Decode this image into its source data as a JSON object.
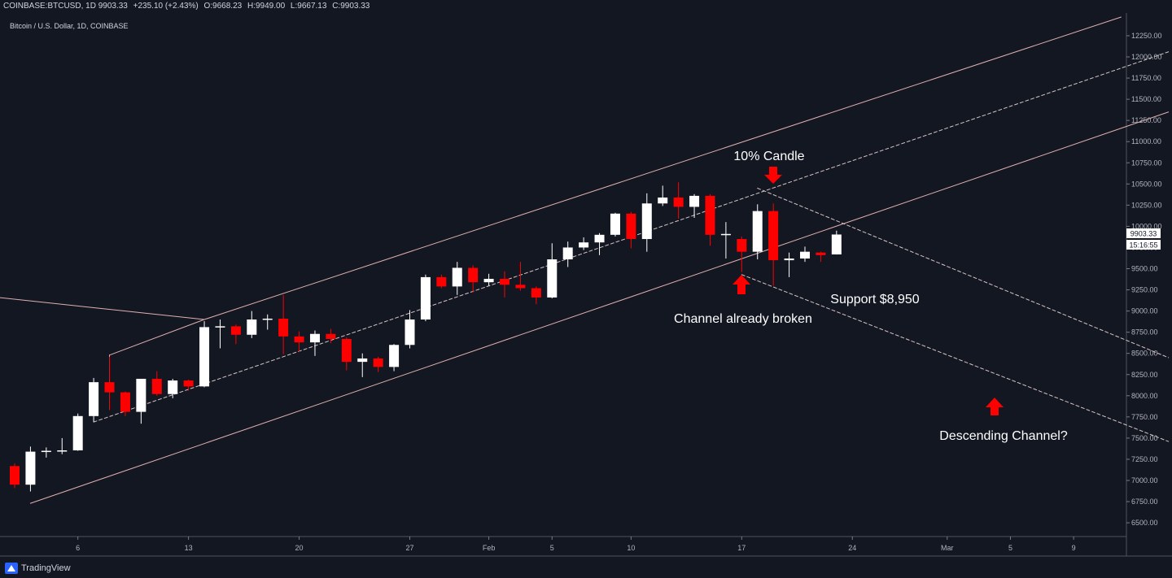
{
  "header": {
    "symbol": "COINBASE:BTCUSD, 1D",
    "last": "9903.33",
    "change": "+235.10 (+2.43%)",
    "o_label": "O:",
    "o_value": "9668.23",
    "h_label": "H:",
    "h_value": "9949.00",
    "l_label": "L:",
    "l_value": "9667.13",
    "c_label": "C:",
    "c_value": "9903.33"
  },
  "chart_title": "Bitcoin / U.S. Dollar, 1D, COINBASE",
  "footer": {
    "brand": "TradingView"
  },
  "price_badge": {
    "price": "9903.33",
    "countdown": "15:16:55"
  },
  "annotations": {
    "candle_10": "10% Candle",
    "channel_broken": "Channel already broken",
    "support": "Support $8,950",
    "descending": "Descending Channel?"
  },
  "colors": {
    "background": "#131722",
    "up_candle": "#ffffff",
    "down_candle": "#ff0000",
    "channel_line": "#e0b0b0",
    "arrow": "#ff0000",
    "text": "#d1d4dc"
  },
  "chart_data": {
    "type": "candlestick",
    "title": "Bitcoin / U.S. Dollar, 1D, COINBASE",
    "xlabel": "",
    "ylabel": "",
    "ylim": [
      6350,
      12450
    ],
    "x_ticks": [
      {
        "label": "6",
        "date": "2020-01-06"
      },
      {
        "label": "13",
        "date": "2020-01-13"
      },
      {
        "label": "20",
        "date": "2020-01-20"
      },
      {
        "label": "27",
        "date": "2020-01-27"
      },
      {
        "label": "Feb",
        "date": "2020-02-01"
      },
      {
        "label": "5",
        "date": "2020-02-05"
      },
      {
        "label": "10",
        "date": "2020-02-10"
      },
      {
        "label": "17",
        "date": "2020-02-17"
      },
      {
        "label": "24",
        "date": "2020-02-24"
      },
      {
        "label": "Mar",
        "date": "2020-03-01"
      },
      {
        "label": "5",
        "date": "2020-03-05"
      },
      {
        "label": "9",
        "date": "2020-03-09"
      }
    ],
    "y_ticks": [
      "12250.00",
      "12000.00",
      "11750.00",
      "11500.00",
      "11250.00",
      "11000.00",
      "10750.00",
      "10500.00",
      "10250.00",
      "10000.00",
      "9750.00",
      "9500.00",
      "9250.00",
      "9000.00",
      "8750.00",
      "8500.00",
      "8250.00",
      "8000.00",
      "7750.00",
      "7500.00",
      "7250.00",
      "7000.00",
      "6750.00",
      "6500.00"
    ],
    "candles": [
      {
        "date": "2020-01-02",
        "o": 7170,
        "h": 7200,
        "l": 6910,
        "c": 6950
      },
      {
        "date": "2020-01-03",
        "o": 6950,
        "h": 7400,
        "l": 6870,
        "c": 7340
      },
      {
        "date": "2020-01-04",
        "o": 7340,
        "h": 7390,
        "l": 7270,
        "c": 7350
      },
      {
        "date": "2020-01-05",
        "o": 7350,
        "h": 7500,
        "l": 7310,
        "c": 7355
      },
      {
        "date": "2020-01-06",
        "o": 7355,
        "h": 7790,
        "l": 7350,
        "c": 7760
      },
      {
        "date": "2020-01-07",
        "o": 7760,
        "h": 8210,
        "l": 7690,
        "c": 8160
      },
      {
        "date": "2020-01-08",
        "o": 8160,
        "h": 8460,
        "l": 7830,
        "c": 8040
      },
      {
        "date": "2020-01-09",
        "o": 8040,
        "h": 8050,
        "l": 7760,
        "c": 7810
      },
      {
        "date": "2020-01-10",
        "o": 7810,
        "h": 8200,
        "l": 7670,
        "c": 8200
      },
      {
        "date": "2020-01-11",
        "o": 8200,
        "h": 8290,
        "l": 8000,
        "c": 8020
      },
      {
        "date": "2020-01-12",
        "o": 8020,
        "h": 8200,
        "l": 7970,
        "c": 8180
      },
      {
        "date": "2020-01-13",
        "o": 8180,
        "h": 8190,
        "l": 8060,
        "c": 8110
      },
      {
        "date": "2020-01-14",
        "o": 8110,
        "h": 8880,
        "l": 8100,
        "c": 8810
      },
      {
        "date": "2020-01-15",
        "o": 8810,
        "h": 8900,
        "l": 8560,
        "c": 8820
      },
      {
        "date": "2020-01-16",
        "o": 8820,
        "h": 8840,
        "l": 8610,
        "c": 8720
      },
      {
        "date": "2020-01-17",
        "o": 8720,
        "h": 9000,
        "l": 8680,
        "c": 8900
      },
      {
        "date": "2020-01-18",
        "o": 8900,
        "h": 8960,
        "l": 8780,
        "c": 8910
      },
      {
        "date": "2020-01-19",
        "o": 8910,
        "h": 9190,
        "l": 8490,
        "c": 8700
      },
      {
        "date": "2020-01-20",
        "o": 8700,
        "h": 8760,
        "l": 8520,
        "c": 8630
      },
      {
        "date": "2020-01-21",
        "o": 8630,
        "h": 8770,
        "l": 8470,
        "c": 8730
      },
      {
        "date": "2020-01-22",
        "o": 8730,
        "h": 8790,
        "l": 8620,
        "c": 8670
      },
      {
        "date": "2020-01-23",
        "o": 8670,
        "h": 8690,
        "l": 8300,
        "c": 8400
      },
      {
        "date": "2020-01-24",
        "o": 8400,
        "h": 8500,
        "l": 8220,
        "c": 8440
      },
      {
        "date": "2020-01-25",
        "o": 8440,
        "h": 8460,
        "l": 8280,
        "c": 8340
      },
      {
        "date": "2020-01-26",
        "o": 8340,
        "h": 8610,
        "l": 8290,
        "c": 8600
      },
      {
        "date": "2020-01-27",
        "o": 8600,
        "h": 9010,
        "l": 8560,
        "c": 8900
      },
      {
        "date": "2020-01-28",
        "o": 8900,
        "h": 9430,
        "l": 8880,
        "c": 9400
      },
      {
        "date": "2020-01-29",
        "o": 9400,
        "h": 9430,
        "l": 9270,
        "c": 9290
      },
      {
        "date": "2020-01-30",
        "o": 9290,
        "h": 9580,
        "l": 9190,
        "c": 9510
      },
      {
        "date": "2020-01-31",
        "o": 9510,
        "h": 9540,
        "l": 9220,
        "c": 9340
      },
      {
        "date": "2020-02-01",
        "o": 9340,
        "h": 9440,
        "l": 9300,
        "c": 9380
      },
      {
        "date": "2020-02-02",
        "o": 9380,
        "h": 9470,
        "l": 9160,
        "c": 9310
      },
      {
        "date": "2020-02-03",
        "o": 9310,
        "h": 9580,
        "l": 9240,
        "c": 9270
      },
      {
        "date": "2020-02-04",
        "o": 9270,
        "h": 9290,
        "l": 9080,
        "c": 9160
      },
      {
        "date": "2020-02-05",
        "o": 9160,
        "h": 9800,
        "l": 9150,
        "c": 9610
      },
      {
        "date": "2020-02-06",
        "o": 9610,
        "h": 9820,
        "l": 9520,
        "c": 9750
      },
      {
        "date": "2020-02-07",
        "o": 9750,
        "h": 9870,
        "l": 9720,
        "c": 9810
      },
      {
        "date": "2020-02-08",
        "o": 9810,
        "h": 9920,
        "l": 9660,
        "c": 9900
      },
      {
        "date": "2020-02-09",
        "o": 9900,
        "h": 10160,
        "l": 9880,
        "c": 10150
      },
      {
        "date": "2020-02-10",
        "o": 10150,
        "h": 10170,
        "l": 9740,
        "c": 9850
      },
      {
        "date": "2020-02-11",
        "o": 9850,
        "h": 10390,
        "l": 9700,
        "c": 10270
      },
      {
        "date": "2020-02-12",
        "o": 10270,
        "h": 10480,
        "l": 10240,
        "c": 10340
      },
      {
        "date": "2020-02-13",
        "o": 10340,
        "h": 10520,
        "l": 10090,
        "c": 10230
      },
      {
        "date": "2020-02-14",
        "o": 10230,
        "h": 10380,
        "l": 10100,
        "c": 10360
      },
      {
        "date": "2020-02-15",
        "o": 10360,
        "h": 10380,
        "l": 9770,
        "c": 9900
      },
      {
        "date": "2020-02-16",
        "o": 9900,
        "h": 10050,
        "l": 9620,
        "c": 9910
      },
      {
        "date": "2020-02-17",
        "o": 9850,
        "h": 9880,
        "l": 9460,
        "c": 9700
      },
      {
        "date": "2020-02-18",
        "o": 9700,
        "h": 10260,
        "l": 9610,
        "c": 10180
      },
      {
        "date": "2020-02-19",
        "o": 10180,
        "h": 10270,
        "l": 9300,
        "c": 9600
      },
      {
        "date": "2020-02-20",
        "o": 9600,
        "h": 9690,
        "l": 9400,
        "c": 9620
      },
      {
        "date": "2020-02-21",
        "o": 9620,
        "h": 9760,
        "l": 9580,
        "c": 9700
      },
      {
        "date": "2020-02-22",
        "o": 9690,
        "h": 9700,
        "l": 9580,
        "c": 9660
      },
      {
        "date": "2020-02-23",
        "o": 9668.23,
        "h": 9949,
        "l": 9667.13,
        "c": 9903.33
      }
    ],
    "lines": [
      {
        "name": "upper-channel-line",
        "style": "solid",
        "from": {
          "date": "2020-01-14",
          "price": 8900
        },
        "to": {
          "date": "2020-03-12",
          "price": 12470
        }
      },
      {
        "name": "lower-channel-line",
        "style": "solid",
        "from": {
          "date": "2020-01-03",
          "price": 6730
        },
        "to": {
          "date": "2020-03-15",
          "price": 11350
        }
      },
      {
        "name": "mid-channel-line",
        "style": "dashed",
        "from": {
          "date": "2020-01-07",
          "price": 7690
        },
        "to": {
          "date": "2020-03-15",
          "price": 12060
        }
      },
      {
        "name": "upper-channel-start-line",
        "style": "solid",
        "from": {
          "date": "2020-01-08",
          "price": 8480
        },
        "to": {
          "date": "2020-01-14",
          "price": 8900
        }
      },
      {
        "name": "channel-vertical-line",
        "style": "solid",
        "from": {
          "date": "2020-01-08",
          "price": 8480
        },
        "to": {
          "date": "2020-01-08",
          "price": 8120
        }
      },
      {
        "name": "prior-trend-line",
        "style": "solid",
        "from": {
          "date": "2019-12-31",
          "price": 9180
        },
        "to": {
          "date": "2020-01-14",
          "price": 8900
        }
      },
      {
        "name": "descending-upper-line",
        "style": "dashed",
        "from": {
          "date": "2020-02-18",
          "price": 10450
        },
        "to": {
          "date": "2020-03-15",
          "price": 8450
        }
      },
      {
        "name": "descending-lower-line",
        "style": "dashed",
        "from": {
          "date": "2020-02-17",
          "price": 9430
        },
        "to": {
          "date": "2020-03-15",
          "price": 7460
        }
      }
    ]
  }
}
